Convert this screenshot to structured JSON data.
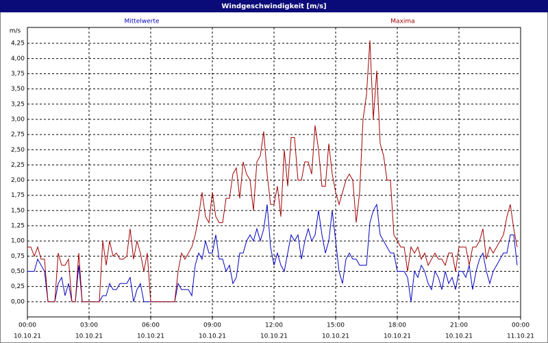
{
  "chart_data": {
    "type": "line",
    "title": "Windgeschwindigkeit [m/s]",
    "y_unit_label": "m/s",
    "xlim": [
      0,
      1440
    ],
    "xticks": [
      {
        "value": 0,
        "label": "00:00"
      },
      {
        "value": 180,
        "label": "03:00"
      },
      {
        "value": 360,
        "label": "06:00"
      },
      {
        "value": 540,
        "label": "09:00"
      },
      {
        "value": 720,
        "label": "12:00"
      },
      {
        "value": 900,
        "label": "15:00"
      },
      {
        "value": 1080,
        "label": "18:00"
      },
      {
        "value": 1260,
        "label": "21:00"
      },
      {
        "value": 1440,
        "label": "00:00"
      }
    ],
    "xtick_dates": [
      "10.10.21",
      "10.10.21",
      "10.10.21",
      "10.10.21",
      "10.10.21",
      "10.10.21",
      "10.10.21",
      "10.10.21",
      "11.10.21"
    ],
    "ylim": [
      -0.25,
      4.5
    ],
    "yticks": [
      {
        "value": 0,
        "label": "0,00"
      },
      {
        "value": 0.25,
        "label": "0,25"
      },
      {
        "value": 0.5,
        "label": "0,50"
      },
      {
        "value": 0.75,
        "label": "0,75"
      },
      {
        "value": 1,
        "label": "1,00"
      },
      {
        "value": 1.25,
        "label": "1,25"
      },
      {
        "value": 1.5,
        "label": "1,50"
      },
      {
        "value": 1.75,
        "label": "1,75"
      },
      {
        "value": 2,
        "label": "2,00"
      },
      {
        "value": 2.25,
        "label": "2,25"
      },
      {
        "value": 2.5,
        "label": "2,50"
      },
      {
        "value": 2.75,
        "label": "2,75"
      },
      {
        "value": 3,
        "label": "3,00"
      },
      {
        "value": 3.25,
        "label": "3,25"
      },
      {
        "value": 3.5,
        "label": "3,50"
      },
      {
        "value": 3.75,
        "label": "3,75"
      },
      {
        "value": 4,
        "label": "4,00"
      },
      {
        "value": 4.25,
        "label": "4,25"
      }
    ],
    "grid": true,
    "x": [
      0,
      10,
      20,
      30,
      40,
      50,
      60,
      70,
      80,
      90,
      100,
      110,
      120,
      130,
      140,
      150,
      160,
      170,
      180,
      190,
      200,
      210,
      220,
      230,
      240,
      250,
      260,
      270,
      280,
      290,
      300,
      310,
      320,
      330,
      340,
      350,
      360,
      370,
      380,
      390,
      400,
      410,
      420,
      430,
      440,
      450,
      460,
      470,
      480,
      490,
      500,
      510,
      520,
      530,
      540,
      550,
      560,
      570,
      580,
      590,
      600,
      610,
      620,
      630,
      640,
      650,
      660,
      670,
      680,
      690,
      700,
      710,
      720,
      730,
      740,
      750,
      760,
      770,
      780,
      790,
      800,
      810,
      820,
      830,
      840,
      850,
      860,
      870,
      880,
      890,
      900,
      910,
      920,
      930,
      940,
      950,
      960,
      970,
      980,
      990,
      1000,
      1010,
      1020,
      1030,
      1040,
      1050,
      1060,
      1070,
      1080,
      1090,
      1100,
      1110,
      1120,
      1130,
      1140,
      1150,
      1160,
      1170,
      1180,
      1190,
      1200,
      1210,
      1220,
      1230,
      1240,
      1250,
      1260,
      1270,
      1280,
      1290,
      1300,
      1310,
      1320,
      1330,
      1340,
      1350,
      1360,
      1370,
      1380,
      1390,
      1400,
      1410,
      1420,
      1430
    ],
    "series": [
      {
        "name": "Mittelwerte",
        "color": "#0000c0",
        "values": [
          0.5,
          0.5,
          0.5,
          0.7,
          0.6,
          0.5,
          0,
          0,
          0,
          0.3,
          0.4,
          0.1,
          0.3,
          0,
          0,
          0.6,
          0,
          0,
          0,
          0,
          0,
          0,
          0.1,
          0.1,
          0.3,
          0.2,
          0.2,
          0.3,
          0.3,
          0.3,
          0.4,
          0,
          0.2,
          0.3,
          0,
          0,
          0,
          0,
          0,
          0,
          0,
          0,
          0,
          0,
          0.3,
          0.2,
          0.2,
          0.2,
          0.1,
          0.6,
          0.8,
          0.7,
          1.0,
          0.8,
          0.8,
          1.1,
          0.7,
          0.7,
          0.5,
          0.6,
          0.3,
          0.4,
          0.8,
          0.8,
          1.0,
          1.1,
          1.0,
          1.2,
          1.0,
          1.2,
          1.6,
          0.9,
          0.6,
          0.8,
          0.6,
          0.5,
          0.8,
          1.1,
          1.0,
          1.1,
          0.7,
          1.0,
          1.2,
          1.0,
          1.1,
          1.5,
          1.1,
          0.8,
          1.0,
          1.5,
          1.0,
          0.5,
          0.3,
          0.7,
          0.8,
          0.7,
          0.7,
          0.6,
          0.6,
          0.6,
          1.3,
          1.5,
          1.6,
          1.1,
          1.0,
          0.9,
          0.8,
          0.8,
          0.5,
          0.5,
          0.5,
          0.4,
          0,
          0.5,
          0.4,
          0.6,
          0.5,
          0.3,
          0.2,
          0.5,
          0.4,
          0.2,
          0.5,
          0.3,
          0.4,
          0.2,
          0.5,
          0.5,
          0.4,
          0.6,
          0.2,
          0.5,
          0.7,
          0.8,
          0.5,
          0.3,
          0.5,
          0.6,
          0.7,
          0.8,
          0.8,
          1.1,
          1.1,
          0.6
        ]
      },
      {
        "name": "Maxima",
        "color": "#a00000",
        "values": [
          0.9,
          0.9,
          0.75,
          0.9,
          0.7,
          0.7,
          0,
          0,
          0,
          0.8,
          0.6,
          0.6,
          0.7,
          0,
          0,
          0.8,
          0,
          0,
          0,
          0,
          0,
          0,
          1.0,
          0.6,
          1.0,
          0.75,
          0.8,
          0.7,
          0.7,
          0.75,
          1.2,
          0.7,
          1.0,
          0.8,
          0.5,
          0.8,
          0,
          0,
          0,
          0,
          0,
          0,
          0,
          0,
          0.5,
          0.8,
          0.7,
          0.8,
          0.9,
          1.1,
          1.4,
          1.8,
          1.4,
          1.3,
          1.8,
          1.4,
          1.3,
          1.3,
          1.7,
          1.7,
          2.1,
          2.2,
          1.7,
          2.3,
          2.1,
          2.0,
          1.5,
          2.3,
          2.4,
          2.8,
          2.1,
          1.6,
          1.6,
          1.9,
          1.4,
          2.5,
          1.9,
          2.7,
          2.7,
          2.0,
          2.0,
          2.3,
          2.3,
          2.1,
          2.9,
          2.5,
          1.9,
          1.9,
          2.6,
          2.1,
          1.8,
          1.6,
          1.8,
          2.0,
          2.1,
          2.0,
          1.3,
          1.8,
          3.0,
          3.4,
          4.3,
          3.0,
          3.8,
          2.6,
          2.4,
          2.0,
          2.0,
          1.1,
          1.0,
          0.9,
          0.9,
          0.5,
          0.9,
          0.8,
          0.9,
          0.7,
          0.8,
          0.6,
          0.7,
          0.8,
          0.7,
          0.7,
          0.6,
          0.8,
          0.8,
          0.5,
          0.9,
          0.9,
          0.9,
          0.6,
          0.9,
          0.9,
          1.0,
          1.2,
          0.7,
          0.9,
          0.8,
          0.9,
          1.0,
          1.1,
          1.4,
          1.6,
          1.2,
          0.9
        ]
      }
    ]
  }
}
